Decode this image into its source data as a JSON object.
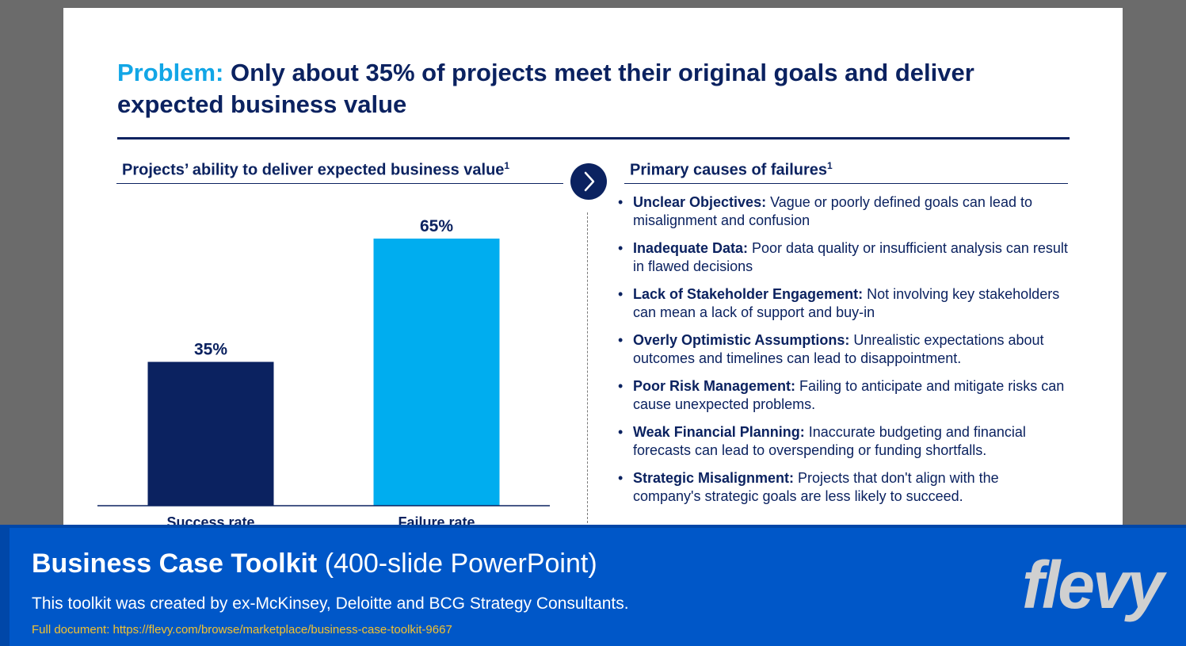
{
  "slide": {
    "title_accent": "Problem:",
    "title_main": " Only about 35% of projects meet their original goals and deliver expected business value",
    "left_heading": "Projects’ ability to deliver expected business value",
    "left_heading_sup": "1",
    "right_heading": "Primary causes of failures",
    "right_heading_sup": "1",
    "causes": [
      {
        "label": "Unclear Objectives:",
        "text": " Vague or poorly defined goals can lead to misalignment and confusion"
      },
      {
        "label": "Inadequate Data:",
        "text": " Poor data quality or insufficient analysis can result in flawed decisions"
      },
      {
        "label": "Lack of Stakeholder Engagement:",
        "text": " Not involving key stakeholders can mean a lack of support and buy-in"
      },
      {
        "label": "Overly Optimistic Assumptions:",
        "text": " Unrealistic expectations about outcomes and timelines can lead to disappointment."
      },
      {
        "label": "Poor Risk Management:",
        "text": " Failing to anticipate and mitigate risks can cause unexpected problems."
      },
      {
        "label": "Weak Financial Planning:",
        "text": " Inaccurate budgeting and financial forecasts can lead to overspending or funding shortfalls."
      },
      {
        "label": "Strategic Misalignment:",
        "text": " Projects that don't align with the company's strategic goals are less likely to succeed."
      }
    ]
  },
  "chart_data": {
    "type": "bar",
    "categories": [
      "Success rate",
      "Failure rate"
    ],
    "values": [
      35,
      65
    ],
    "value_labels": [
      "35%",
      "65%"
    ],
    "colors": [
      "#0b2260",
      "#00adef"
    ],
    "ylim": [
      0,
      65
    ],
    "grid": false,
    "title": "",
    "xlabel": "",
    "ylabel": ""
  },
  "banner": {
    "title_bold": "Business Case Toolkit",
    "title_rest": " (400-slide PowerPoint)",
    "subtitle": "This toolkit was created by ex-McKinsey, Deloitte and BCG Strategy Consultants.",
    "link": "Full document: https://flevy.com/browse/marketplace/business-case-toolkit-9667",
    "logo": "flevy"
  }
}
